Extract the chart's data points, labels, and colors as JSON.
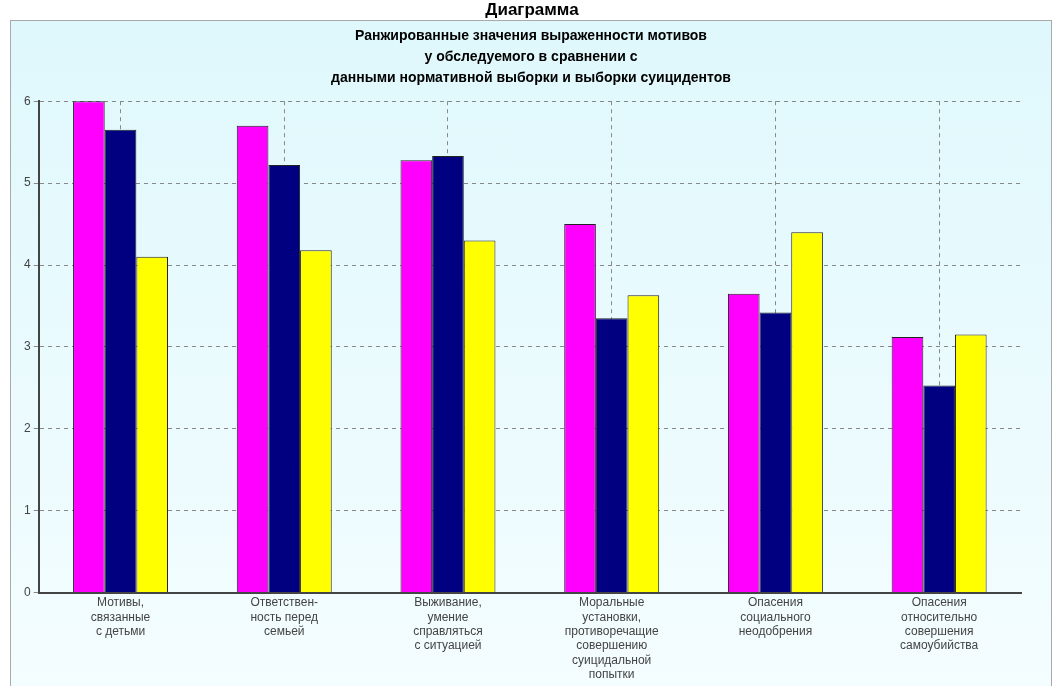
{
  "chart_data": {
    "type": "bar",
    "title": "Диаграмма",
    "subtitle": "Ранжированные значения выраженности мотивов\nу обследуемого в сравнении с\nданными нормативной выборки и выборки суицидентов",
    "categories": [
      "Мотивы,\nсвязанные\nс детьми",
      "Ответствен-\nность перед\nсемьей",
      "Выживание,\nумение\nсправляться\nс ситуацией",
      "Моральные\nустановки,\nпротиворечащие\nсовершению\nсуицидальной\nпопытки",
      "Опасения\nсоциального\nнеодобрения",
      "Опасения\nотносительно\nсовершения\nсамоубийства"
    ],
    "series": [
      {
        "color": "#ff00ff",
        "values": [
          6.0,
          5.7,
          5.28,
          4.5,
          3.65,
          3.12
        ]
      },
      {
        "color": "#000080",
        "values": [
          5.65,
          5.22,
          5.33,
          3.35,
          3.42,
          2.53
        ]
      },
      {
        "color": "#ffff00",
        "values": [
          4.1,
          4.18,
          4.3,
          3.63,
          4.4,
          3.15
        ]
      }
    ],
    "ylim": [
      0,
      6
    ],
    "yticks": [
      0,
      1,
      2,
      3,
      4,
      5,
      6
    ],
    "grid": true,
    "legend": false
  }
}
